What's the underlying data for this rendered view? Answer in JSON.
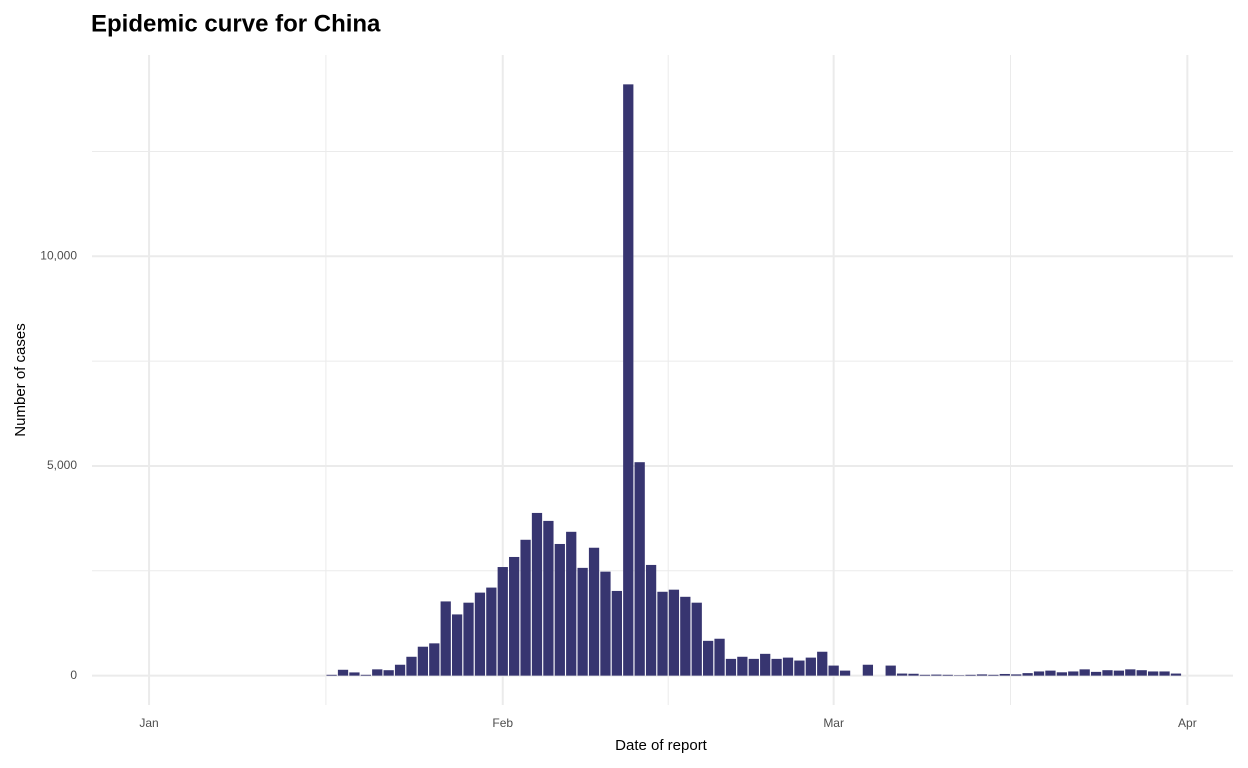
{
  "chart_data": {
    "type": "bar",
    "title": "Epidemic curve for China",
    "x_label": "Date of report",
    "y_label": "Number of cases",
    "x": [
      16,
      17,
      18,
      19,
      20,
      21,
      22,
      23,
      24,
      25,
      26,
      27,
      28,
      29,
      30,
      31,
      32,
      33,
      34,
      35,
      36,
      37,
      38,
      39,
      40,
      41,
      42,
      43,
      44,
      45,
      46,
      47,
      48,
      49,
      50,
      51,
      52,
      53,
      54,
      55,
      56,
      57,
      58,
      59,
      60,
      61,
      62,
      63,
      64,
      65,
      66,
      67,
      68,
      69,
      70,
      71,
      72,
      73,
      74,
      75,
      76,
      77,
      78,
      79,
      80,
      81,
      82,
      83,
      84,
      85,
      86,
      87,
      88,
      89,
      90
    ],
    "values": [
      20,
      140,
      77,
      20,
      150,
      130,
      260,
      450,
      690,
      770,
      1770,
      1460,
      1740,
      1980,
      2100,
      2590,
      2830,
      3240,
      3880,
      3690,
      3140,
      3430,
      2570,
      3050,
      2480,
      2020,
      14100,
      5090,
      2640,
      2000,
      2050,
      1880,
      1740,
      830,
      880,
      400,
      450,
      400,
      520,
      400,
      430,
      360,
      430,
      570,
      240,
      120,
      0,
      260,
      0,
      240,
      50,
      45,
      20,
      25,
      20,
      10,
      20,
      30,
      20,
      40,
      30,
      60,
      100,
      120,
      80,
      100,
      150,
      90,
      130,
      120,
      150,
      130,
      100,
      100,
      50
    ],
    "color": "#373570",
    "xlim": [
      -5,
      95
    ],
    "xticks": [
      {
        "value": 0,
        "label": "Jan"
      },
      {
        "value": 31,
        "label": "Feb"
      },
      {
        "value": 60,
        "label": "Mar"
      },
      {
        "value": 91,
        "label": "Apr"
      }
    ],
    "ylim": [
      -700,
      14800
    ],
    "yticks": [
      0,
      {
        "value": 5000,
        "label": "5,000"
      },
      {
        "value": 10000,
        "label": "10,000"
      }
    ],
    "grid": true
  }
}
